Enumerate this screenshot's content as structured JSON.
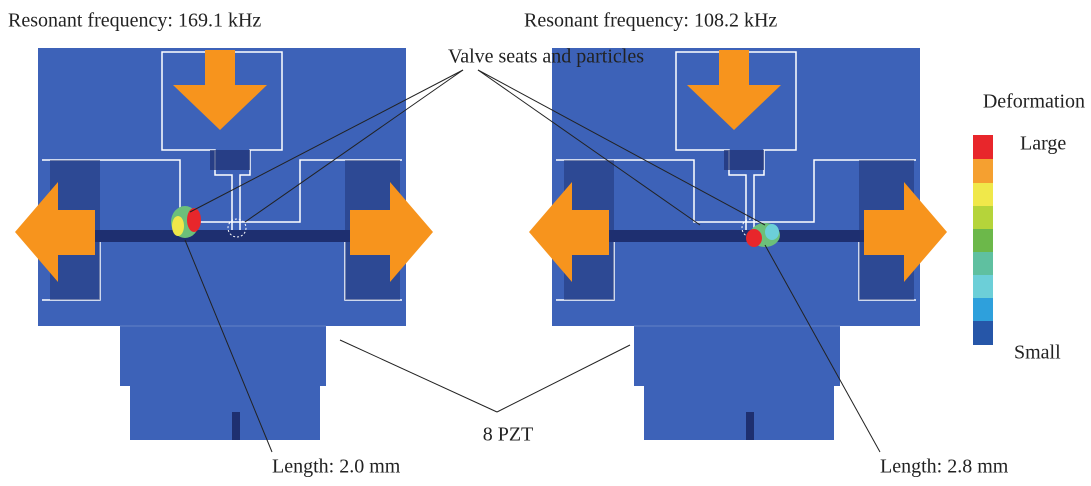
{
  "panels": [
    {
      "label": "Resonant frequency: 169.1 kHz",
      "length_label": "Length: 2.0 mm"
    },
    {
      "label": "Resonant frequency: 108.2 kHz",
      "length_label": "Length: 2.8 mm"
    }
  ],
  "callouts": {
    "valve": "Valve seats and particles",
    "pzt": "8 PZT"
  },
  "legend": {
    "title": "Deformation",
    "high": "Large",
    "low": "Small"
  }
}
